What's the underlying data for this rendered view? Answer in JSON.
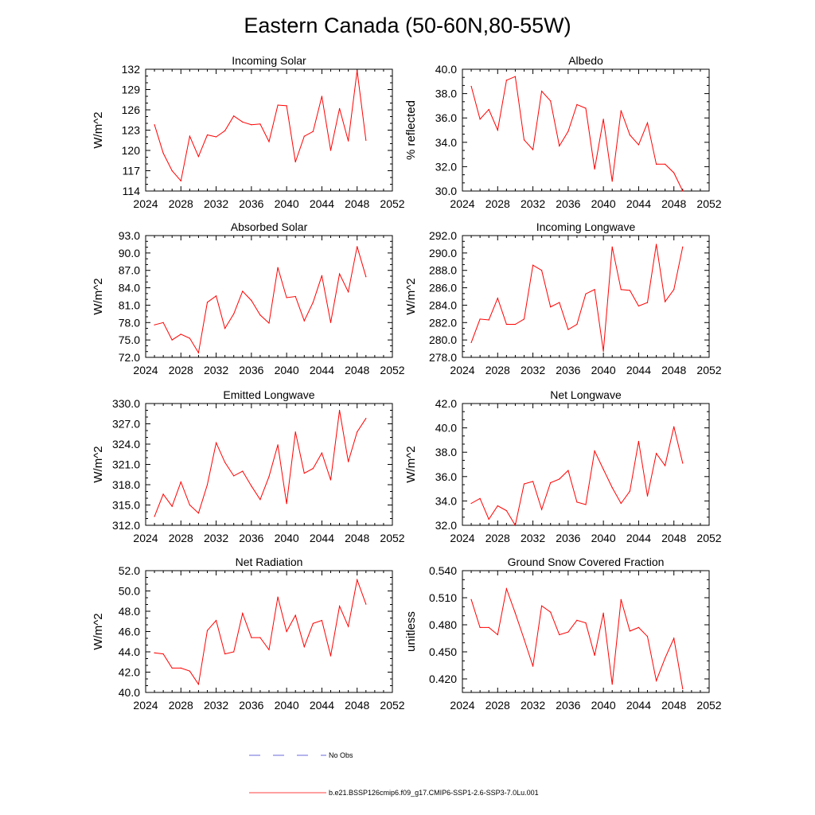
{
  "title": "Eastern Canada (50-60N,80-55W)",
  "colors": {
    "series": "#ff0000",
    "obs": "#3a3ad0",
    "axis": "#000000"
  },
  "legend": {
    "obs_label": "No Obs",
    "model_label": "b.e21.BSSP126cmip6.f09_g17.CMIP6-SSP1-2.6-SSP3-7.0Lu.001"
  },
  "chart_data": [
    {
      "type": "line",
      "title": "Incoming Solar",
      "ylabel": "W/m^2",
      "xlim": [
        2024,
        2052
      ],
      "ylim": [
        114,
        132
      ],
      "xticks": [
        "2024",
        "2028",
        "2032",
        "2036",
        "2040",
        "2044",
        "2048",
        "2052"
      ],
      "yticks": [
        "114",
        "117",
        "120",
        "123",
        "126",
        "129",
        "132"
      ],
      "x": [
        2025,
        2026,
        2027,
        2028,
        2029,
        2030,
        2031,
        2032,
        2033,
        2034,
        2035,
        2036,
        2037,
        2038,
        2039,
        2040,
        2041,
        2042,
        2043,
        2044,
        2045,
        2046,
        2047,
        2048,
        2049
      ],
      "series": [
        {
          "values": [
            123.8,
            119.6,
            117.0,
            115.5,
            122.1,
            119.1,
            122.3,
            122.0,
            122.9,
            125.1,
            124.2,
            123.8,
            123.9,
            121.3,
            126.7,
            126.6,
            118.3,
            122.1,
            122.8,
            128.0,
            120.0,
            126.2,
            121.4,
            131.8,
            121.5
          ]
        }
      ]
    },
    {
      "type": "line",
      "title": "Albedo",
      "ylabel": "% reflected",
      "xlim": [
        2024,
        2052
      ],
      "ylim": [
        30,
        40
      ],
      "xticks": [
        "2024",
        "2028",
        "2032",
        "2036",
        "2040",
        "2044",
        "2048",
        "2052"
      ],
      "yticks": [
        "30.0",
        "32.0",
        "34.0",
        "36.0",
        "38.0",
        "40.0"
      ],
      "x": [
        2025,
        2026,
        2027,
        2028,
        2029,
        2030,
        2031,
        2032,
        2033,
        2034,
        2035,
        2036,
        2037,
        2038,
        2039,
        2040,
        2041,
        2042,
        2043,
        2044,
        2045,
        2046,
        2047,
        2048,
        2049
      ],
      "series": [
        {
          "values": [
            38.6,
            35.9,
            36.7,
            35.0,
            39.1,
            39.4,
            34.2,
            33.4,
            38.2,
            37.4,
            33.7,
            34.9,
            37.1,
            36.8,
            31.8,
            35.9,
            30.8,
            36.6,
            34.6,
            33.8,
            35.6,
            32.2,
            32.2,
            31.5,
            30.0
          ]
        }
      ]
    },
    {
      "type": "line",
      "title": "Absorbed Solar",
      "ylabel": "W/m^2",
      "xlim": [
        2024,
        2052
      ],
      "ylim": [
        72,
        93
      ],
      "xticks": [
        "2024",
        "2028",
        "2032",
        "2036",
        "2040",
        "2044",
        "2048",
        "2052"
      ],
      "yticks": [
        "72.0",
        "75.0",
        "78.0",
        "81.0",
        "84.0",
        "87.0",
        "90.0",
        "93.0"
      ],
      "x": [
        2025,
        2026,
        2027,
        2028,
        2029,
        2030,
        2031,
        2032,
        2033,
        2034,
        2035,
        2036,
        2037,
        2038,
        2039,
        2040,
        2041,
        2042,
        2043,
        2044,
        2045,
        2046,
        2047,
        2048,
        2049
      ],
      "series": [
        {
          "values": [
            77.6,
            78.0,
            75.0,
            76.0,
            75.3,
            72.8,
            81.5,
            82.6,
            77.0,
            79.5,
            83.4,
            81.8,
            79.3,
            77.9,
            87.5,
            82.3,
            82.5,
            78.3,
            81.5,
            86.1,
            78.0,
            86.4,
            83.3,
            91.1,
            85.9
          ]
        }
      ]
    },
    {
      "type": "line",
      "title": "Incoming Longwave",
      "ylabel": "W/m^2",
      "xlim": [
        2024,
        2052
      ],
      "ylim": [
        278,
        292
      ],
      "xticks": [
        "2024",
        "2028",
        "2032",
        "2036",
        "2040",
        "2044",
        "2048",
        "2052"
      ],
      "yticks": [
        "278.0",
        "280.0",
        "282.0",
        "284.0",
        "286.0",
        "288.0",
        "290.0",
        "292.0"
      ],
      "x": [
        2025,
        2026,
        2027,
        2028,
        2029,
        2030,
        2031,
        2032,
        2033,
        2034,
        2035,
        2036,
        2037,
        2038,
        2039,
        2040,
        2041,
        2042,
        2043,
        2044,
        2045,
        2046,
        2047,
        2048,
        2049
      ],
      "series": [
        {
          "values": [
            279.7,
            282.4,
            282.3,
            284.8,
            281.8,
            281.8,
            282.4,
            288.6,
            288.0,
            283.8,
            284.3,
            281.2,
            281.8,
            285.3,
            285.8,
            278.7,
            290.7,
            285.8,
            285.7,
            283.9,
            284.3,
            291.0,
            284.4,
            285.8,
            290.7
          ]
        }
      ]
    },
    {
      "type": "line",
      "title": "Emitted Longwave",
      "ylabel": "W/m^2",
      "xlim": [
        2024,
        2052
      ],
      "ylim": [
        312,
        330
      ],
      "xticks": [
        "2024",
        "2028",
        "2032",
        "2036",
        "2040",
        "2044",
        "2048",
        "2052"
      ],
      "yticks": [
        "312.0",
        "315.0",
        "318.0",
        "321.0",
        "324.0",
        "327.0",
        "330.0"
      ],
      "x": [
        2025,
        2026,
        2027,
        2028,
        2029,
        2030,
        2031,
        2032,
        2033,
        2034,
        2035,
        2036,
        2037,
        2038,
        2039,
        2040,
        2041,
        2042,
        2043,
        2044,
        2045,
        2046,
        2047,
        2048,
        2049
      ],
      "series": [
        {
          "values": [
            313.3,
            316.6,
            314.8,
            318.4,
            315.0,
            313.8,
            318.0,
            324.2,
            321.3,
            319.3,
            320.0,
            317.8,
            315.8,
            319.2,
            323.9,
            315.2,
            325.8,
            319.7,
            320.4,
            322.7,
            318.7,
            329.0,
            321.4,
            325.8,
            327.8
          ]
        }
      ]
    },
    {
      "type": "line",
      "title": "Net Longwave",
      "ylabel": "W/m^2",
      "xlim": [
        2024,
        2052
      ],
      "ylim": [
        32,
        42
      ],
      "xticks": [
        "2024",
        "2028",
        "2032",
        "2036",
        "2040",
        "2044",
        "2048",
        "2052"
      ],
      "yticks": [
        "32.0",
        "34.0",
        "36.0",
        "38.0",
        "40.0",
        "42.0"
      ],
      "x": [
        2025,
        2026,
        2027,
        2028,
        2029,
        2030,
        2031,
        2032,
        2033,
        2034,
        2035,
        2036,
        2037,
        2038,
        2039,
        2040,
        2041,
        2042,
        2043,
        2044,
        2045,
        2046,
        2047,
        2048,
        2049
      ],
      "series": [
        {
          "values": [
            33.8,
            34.2,
            32.5,
            33.6,
            33.2,
            32.0,
            35.4,
            35.6,
            33.3,
            35.5,
            35.8,
            36.5,
            33.9,
            33.7,
            38.1,
            36.6,
            35.1,
            33.8,
            34.8,
            38.9,
            34.4,
            37.9,
            36.9,
            40.1,
            37.1
          ]
        }
      ]
    },
    {
      "type": "line",
      "title": "Net Radiation",
      "ylabel": "W/m^2",
      "xlim": [
        2024,
        2052
      ],
      "ylim": [
        40,
        52
      ],
      "xticks": [
        "2024",
        "2028",
        "2032",
        "2036",
        "2040",
        "2044",
        "2048",
        "2052"
      ],
      "yticks": [
        "40.0",
        "42.0",
        "44.0",
        "46.0",
        "48.0",
        "50.0",
        "52.0"
      ],
      "x": [
        2025,
        2026,
        2027,
        2028,
        2029,
        2030,
        2031,
        2032,
        2033,
        2034,
        2035,
        2036,
        2037,
        2038,
        2039,
        2040,
        2041,
        2042,
        2043,
        2044,
        2045,
        2046,
        2047,
        2048,
        2049
      ],
      "series": [
        {
          "values": [
            43.9,
            43.8,
            42.4,
            42.4,
            42.1,
            40.8,
            46.1,
            47.1,
            43.8,
            44.0,
            47.8,
            45.4,
            45.4,
            44.2,
            49.4,
            46.0,
            47.6,
            44.5,
            46.8,
            47.1,
            43.6,
            48.5,
            46.5,
            51.1,
            48.7
          ]
        }
      ]
    },
    {
      "type": "line",
      "title": "Ground Snow Covered Fraction",
      "ylabel": "unitless",
      "xlim": [
        2024,
        2052
      ],
      "ylim": [
        0.405,
        0.54
      ],
      "xticks": [
        "2024",
        "2028",
        "2032",
        "2036",
        "2040",
        "2044",
        "2048",
        "2052"
      ],
      "yticks": [
        "0.420",
        "0.450",
        "0.480",
        "0.510",
        "0.540"
      ],
      "ytick_values": [
        0.42,
        0.45,
        0.48,
        0.51,
        0.54
      ],
      "x": [
        2025,
        2026,
        2027,
        2028,
        2029,
        2030,
        2031,
        2032,
        2033,
        2034,
        2035,
        2036,
        2037,
        2038,
        2039,
        2040,
        2041,
        2042,
        2043,
        2044,
        2045,
        2046,
        2047,
        2048,
        2049
      ],
      "series": [
        {
          "values": [
            0.508,
            0.477,
            0.477,
            0.469,
            0.52,
            0.493,
            0.464,
            0.434,
            0.501,
            0.494,
            0.469,
            0.472,
            0.485,
            0.482,
            0.446,
            0.493,
            0.414,
            0.508,
            0.473,
            0.477,
            0.467,
            0.418,
            0.443,
            0.465,
            0.409
          ]
        }
      ]
    }
  ]
}
